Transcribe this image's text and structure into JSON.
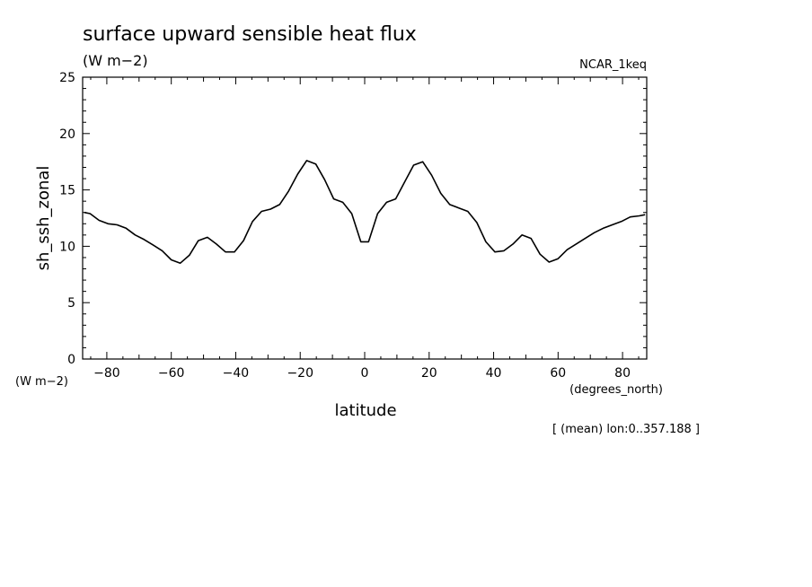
{
  "chart_data": {
    "type": "line",
    "title": "surface upward sensible heat flux",
    "units_top": "(W m−2)",
    "units_left": "(W m−2)",
    "dataset_label": "NCAR_1keq",
    "ylabel": "sh_ssh_zonal",
    "xlabel": "latitude",
    "xlabel_units": "(degrees_north)",
    "footnote": "[ (mean) lon:0..357.188 ]",
    "xlim": [
      -87.5,
      87.5
    ],
    "ylim": [
      0,
      25
    ],
    "x_ticks": [
      -80,
      -60,
      -40,
      -20,
      0,
      20,
      40,
      60,
      80
    ],
    "y_ticks": [
      0,
      5,
      10,
      15,
      20,
      25
    ],
    "series": [
      {
        "x": [
          -87.0,
          -85.2,
          -82.4,
          -79.6,
          -76.8,
          -74.0,
          -71.2,
          -68.4,
          -65.6,
          -62.8,
          -60.0,
          -57.2,
          -54.4,
          -51.6,
          -48.8,
          -46.0,
          -43.2,
          -40.4,
          -37.6,
          -34.8,
          -32.0,
          -29.2,
          -26.4,
          -23.6,
          -20.8,
          -18.0,
          -15.2,
          -12.4,
          -9.6,
          -6.8,
          -4.0,
          -1.2,
          1.2,
          4.0,
          6.8,
          9.6,
          12.4,
          15.2,
          18.0,
          20.8,
          23.6,
          26.4,
          29.2,
          32.0,
          34.8,
          37.6,
          40.4,
          43.2,
          46.0,
          48.8,
          51.6,
          54.4,
          57.2,
          60.0,
          62.8,
          65.6,
          68.4,
          71.2,
          74.0,
          76.8,
          79.6,
          82.4,
          85.2,
          87.0
        ],
        "y": [
          13.0,
          12.9,
          12.3,
          12.0,
          11.9,
          11.6,
          11.0,
          10.6,
          10.1,
          9.6,
          8.8,
          8.5,
          9.2,
          10.5,
          10.8,
          10.2,
          9.5,
          9.5,
          10.5,
          12.2,
          13.1,
          13.3,
          13.7,
          14.9,
          16.4,
          17.6,
          17.3,
          15.9,
          14.2,
          13.9,
          12.9,
          10.4,
          10.4,
          12.9,
          13.9,
          14.2,
          15.7,
          17.2,
          17.5,
          16.3,
          14.7,
          13.7,
          13.4,
          13.1,
          12.1,
          10.4,
          9.5,
          9.6,
          10.2,
          11.0,
          10.7,
          9.3,
          8.6,
          8.9,
          9.7,
          10.2,
          10.7,
          11.2,
          11.6,
          11.9,
          12.2,
          12.6,
          12.7,
          12.8
        ]
      }
    ]
  }
}
